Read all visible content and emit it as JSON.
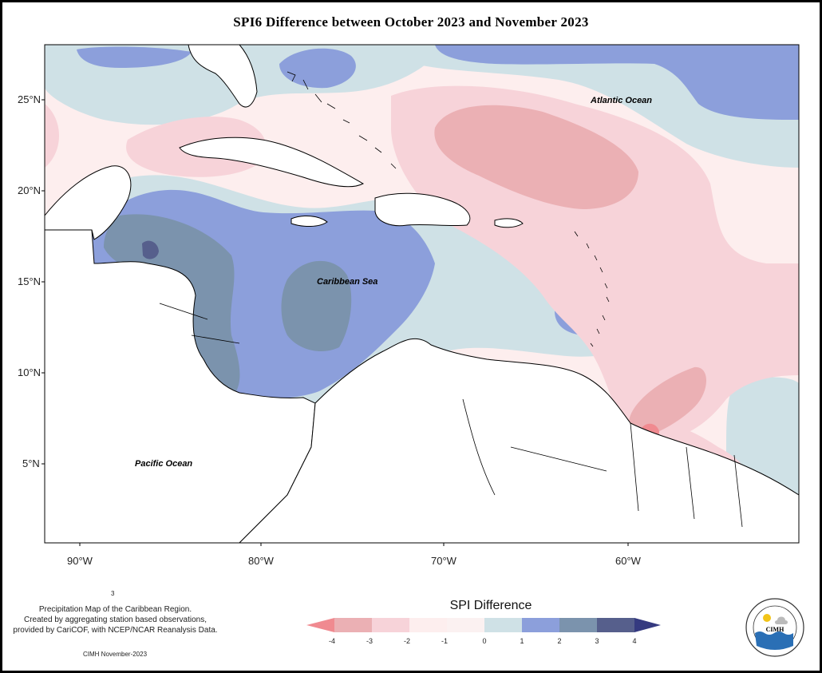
{
  "title": "SPI6 Difference between October 2023 and November 2023",
  "map": {
    "lat_labels": [
      "25°N",
      "20°N",
      "15°N",
      "10°N",
      "5°N"
    ],
    "lon_labels": [
      "90°W",
      "80°W",
      "70°W",
      "60°W"
    ],
    "ocean_labels": {
      "atlantic": "Atlantic Ocean",
      "caribbean": "Caribbean Sea",
      "pacific": "Pacific Ocean"
    }
  },
  "legend": {
    "title": "SPI Difference",
    "ticks": [
      "-4",
      "-3",
      "-2",
      "-1",
      "0",
      "1",
      "2",
      "3",
      "4"
    ],
    "colors": [
      "#f08a90",
      "#ebb0b4",
      "#f7d3d9",
      "#fdeeee",
      "#cfe1e6",
      "#8c9fdb",
      "#7b93ad",
      "#565f8c",
      "#353a80"
    ]
  },
  "footnote": {
    "stray": "3",
    "line1": "Precipitation Map of the Caribbean Region.",
    "line2": "Created by aggregating station based observations,",
    "line3": "provided by CariCOF, with NCEP/NCAR Reanalysis Data.",
    "credit": "CIMH November-2023"
  },
  "logo": {
    "name": "CIMH",
    "ring_text": "Caribbean Institute for Meteorology and Hydrology"
  }
}
